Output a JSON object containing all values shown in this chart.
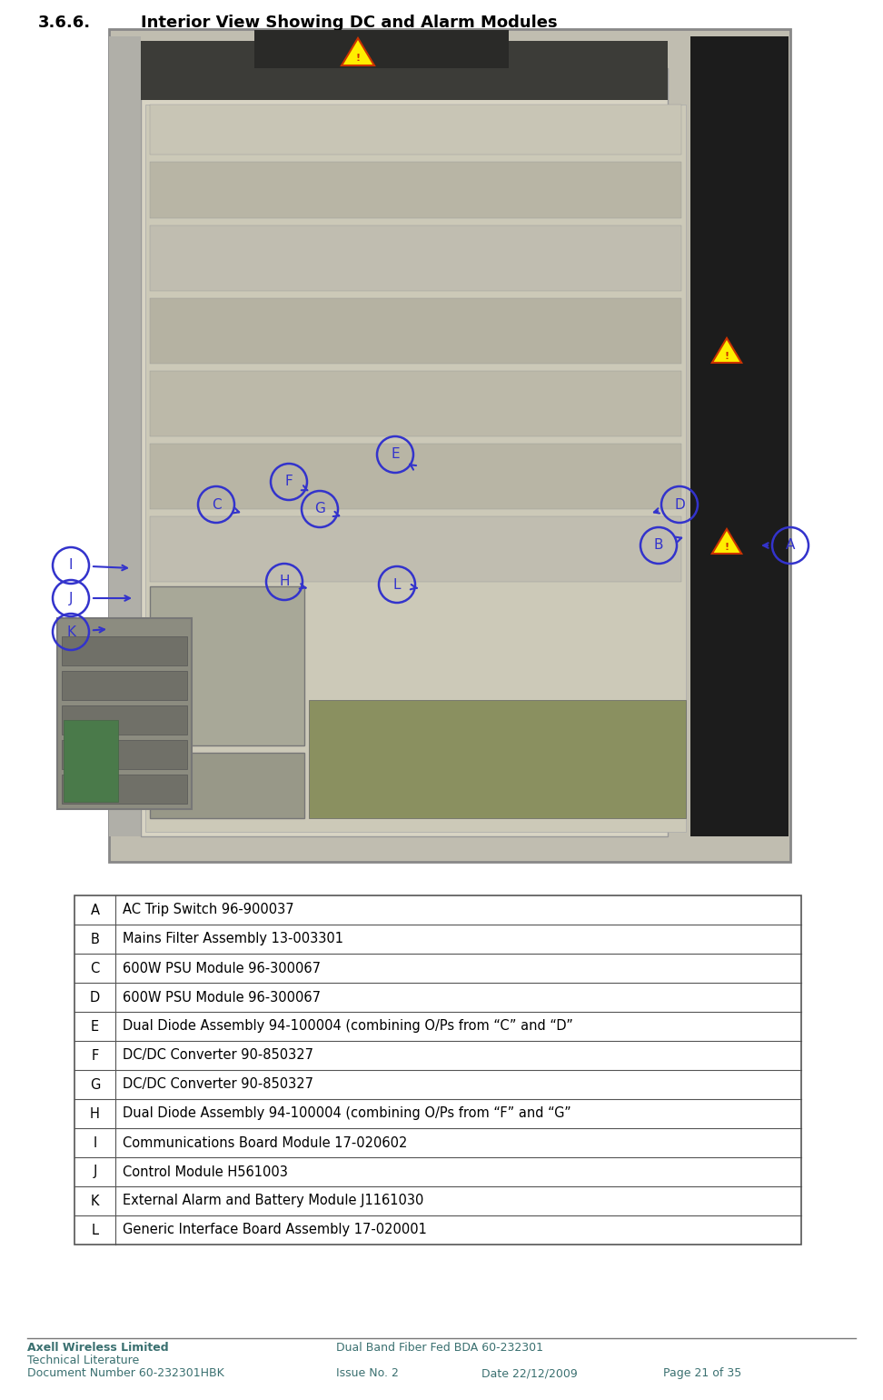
{
  "title_num": "3.6.6.",
  "title_text": "Interior View Showing DC and Alarm Modules",
  "table_rows": [
    [
      "A",
      "AC Trip Switch 96-900037"
    ],
    [
      "B",
      "Mains Filter Assembly 13-003301"
    ],
    [
      "C",
      "600W PSU Module 96-300067"
    ],
    [
      "D",
      "600W PSU Module 96-300067"
    ],
    [
      "E",
      "Dual Diode Assembly 94-100004 (combining O/Ps from “C” and “D”"
    ],
    [
      "F",
      "DC/DC Converter 90-850327"
    ],
    [
      "G",
      "DC/DC Converter 90-850327"
    ],
    [
      "H",
      "Dual Diode Assembly 94-100004 (combining O/Ps from “F” and “G”"
    ],
    [
      "I",
      "Communications Board Module 17-020602"
    ],
    [
      "J",
      "Control Module H561003"
    ],
    [
      "K",
      "External Alarm and Battery Module J1161030"
    ],
    [
      "L",
      "Generic Interface Board Assembly 17-020001"
    ]
  ],
  "footer_left_line1": "Axell Wireless Limited",
  "footer_left_line2": "Technical Literature",
  "footer_left_line3": "Document Number 60-232301HBK",
  "footer_center": "Dual Band Fiber Fed BDA 60-232301",
  "footer_issue": "Issue No. 2",
  "footer_date": "Date 22/12/2009",
  "footer_page": "Page 21 of 35",
  "bg_color": "#ffffff",
  "table_border_color": "#555555",
  "title_color": "#000000",
  "footer_color": "#3a7070",
  "label_color": "#3333cc"
}
